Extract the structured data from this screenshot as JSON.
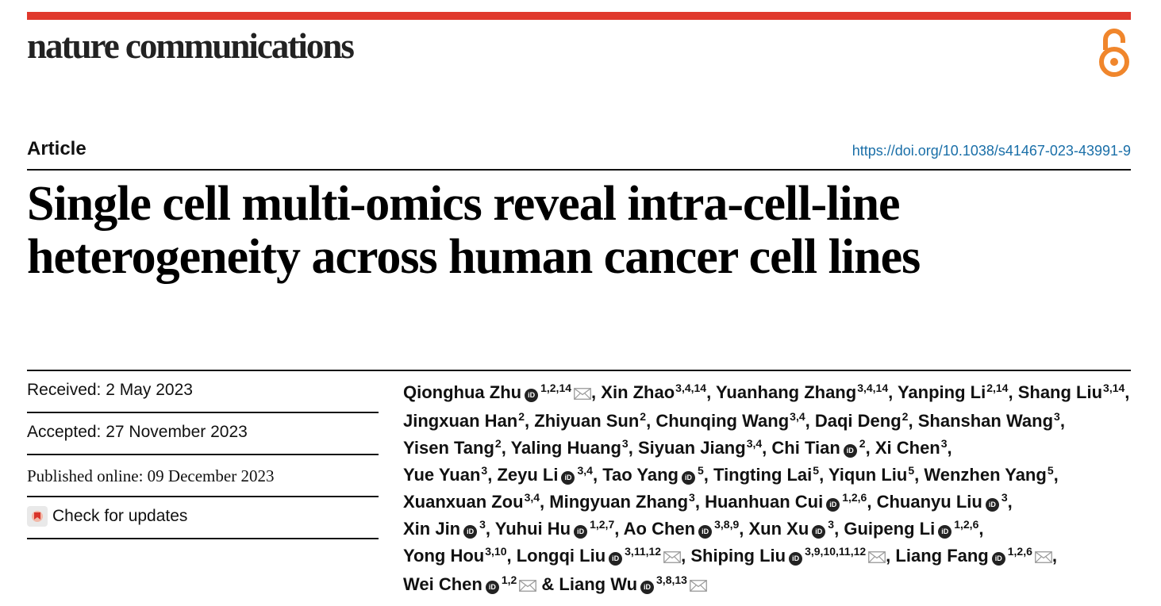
{
  "journal": "nature communications",
  "article_type": "Article",
  "doi": "https://doi.org/10.1038/s41467-023-43991-9",
  "title": "Single cell multi-omics reveal intra-cell-line heterogeneity across human cancer cell lines",
  "meta": {
    "received": "Received: 2 May 2023",
    "accepted": "Accepted: 27 November 2023",
    "published": "Published online: 09 December 2023",
    "check_updates": "Check for updates"
  },
  "colors": {
    "accent_bar": "#e0392d",
    "open_access": "#f0862c",
    "doi_link": "#1a6fa8"
  },
  "authors": [
    {
      "name": "Qionghua Zhu",
      "aff": "1,2,14",
      "orcid": true,
      "mail": true
    },
    {
      "name": "Xin Zhao",
      "aff": "3,4,14",
      "orcid": false,
      "mail": false
    },
    {
      "name": "Yuanhang Zhang",
      "aff": "3,4,14",
      "orcid": false,
      "mail": false
    },
    {
      "name": "Yanping Li",
      "aff": "2,14",
      "orcid": false,
      "mail": false
    },
    {
      "name": "Shang Liu",
      "aff": "3,14",
      "orcid": false,
      "mail": false
    },
    {
      "name": "Jingxuan Han",
      "aff": "2",
      "orcid": false,
      "mail": false
    },
    {
      "name": "Zhiyuan Sun",
      "aff": "2",
      "orcid": false,
      "mail": false
    },
    {
      "name": "Chunqing Wang",
      "aff": "3,4",
      "orcid": false,
      "mail": false
    },
    {
      "name": "Daqi Deng",
      "aff": "2",
      "orcid": false,
      "mail": false
    },
    {
      "name": "Shanshan Wang",
      "aff": "3",
      "orcid": false,
      "mail": false
    },
    {
      "name": "Yisen Tang",
      "aff": "2",
      "orcid": false,
      "mail": false
    },
    {
      "name": "Yaling Huang",
      "aff": "3",
      "orcid": false,
      "mail": false
    },
    {
      "name": "Siyuan Jiang",
      "aff": "3,4",
      "orcid": false,
      "mail": false
    },
    {
      "name": "Chi Tian",
      "aff": "2",
      "orcid": true,
      "mail": false
    },
    {
      "name": "Xi Chen",
      "aff": "3",
      "orcid": false,
      "mail": false
    },
    {
      "name": "Yue Yuan",
      "aff": "3",
      "orcid": false,
      "mail": false
    },
    {
      "name": "Zeyu Li",
      "aff": "3,4",
      "orcid": true,
      "mail": false
    },
    {
      "name": "Tao Yang",
      "aff": "5",
      "orcid": true,
      "mail": false
    },
    {
      "name": "Tingting Lai",
      "aff": "5",
      "orcid": false,
      "mail": false
    },
    {
      "name": "Yiqun Liu",
      "aff": "5",
      "orcid": false,
      "mail": false
    },
    {
      "name": "Wenzhen Yang",
      "aff": "5",
      "orcid": false,
      "mail": false
    },
    {
      "name": "Xuanxuan Zou",
      "aff": "3,4",
      "orcid": false,
      "mail": false
    },
    {
      "name": "Mingyuan Zhang",
      "aff": "3",
      "orcid": false,
      "mail": false
    },
    {
      "name": "Huanhuan Cui",
      "aff": "1,2,6",
      "orcid": true,
      "mail": false
    },
    {
      "name": "Chuanyu Liu",
      "aff": "3",
      "orcid": true,
      "mail": false
    },
    {
      "name": "Xin Jin",
      "aff": "3",
      "orcid": true,
      "mail": false
    },
    {
      "name": "Yuhui Hu",
      "aff": "1,2,7",
      "orcid": true,
      "mail": false
    },
    {
      "name": "Ao Chen",
      "aff": "3,8,9",
      "orcid": true,
      "mail": false
    },
    {
      "name": "Xun Xu",
      "aff": "3",
      "orcid": true,
      "mail": false
    },
    {
      "name": "Guipeng Li",
      "aff": "1,2,6",
      "orcid": true,
      "mail": false
    },
    {
      "name": "Yong Hou",
      "aff": "3,10",
      "orcid": false,
      "mail": false
    },
    {
      "name": "Longqi Liu",
      "aff": "3,11,12",
      "orcid": true,
      "mail": true
    },
    {
      "name": "Shiping Liu",
      "aff": "3,9,10,11,12",
      "orcid": true,
      "mail": true
    },
    {
      "name": "Liang Fang",
      "aff": "1,2,6",
      "orcid": true,
      "mail": true
    },
    {
      "name": "Wei Chen",
      "aff": "1,2",
      "orcid": true,
      "mail": true
    },
    {
      "name": "Liang Wu",
      "aff": "3,8,13",
      "orcid": true,
      "mail": true
    }
  ],
  "author_line_breaks": [
    4,
    9,
    14,
    20,
    24,
    29,
    33
  ],
  "separator": ", ",
  "last_separator": " & "
}
